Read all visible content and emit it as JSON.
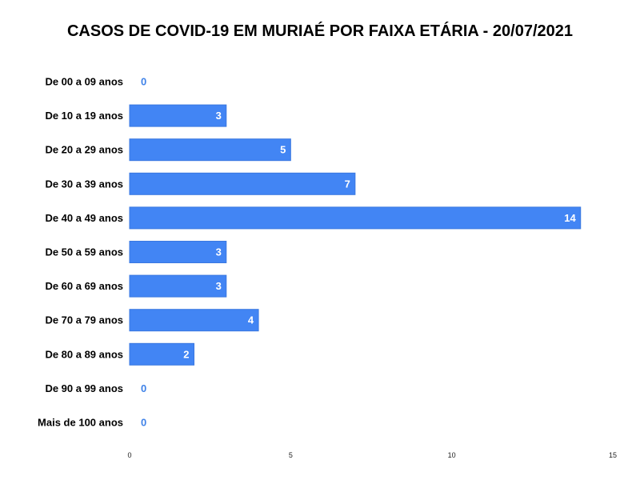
{
  "chart_data": {
    "type": "bar",
    "orientation": "horizontal",
    "title": "CASOS DE COVID-19 EM MURIAÉ POR FAIXA ETÁRIA - 20/07/2021",
    "xlabel": "",
    "ylabel": "",
    "categories": [
      "De 00 a 09 anos",
      "De 10 a 19 anos",
      "De 20 a 29 anos",
      "De 30 a 39 anos",
      "De 40 a 49 anos",
      "De 50 a 59 anos",
      "De 60 a 69 anos",
      "De 70 a 79 anos",
      "De 80 a 89 anos",
      "De 90 a 99 anos",
      "Mais de 100 anos"
    ],
    "values": [
      0,
      3,
      5,
      7,
      14,
      3,
      3,
      4,
      2,
      0,
      0
    ],
    "data_labels": true,
    "xlim": [
      0,
      15
    ],
    "x_ticks": [
      0,
      5,
      10,
      15
    ],
    "grid": false,
    "legend": "none",
    "bar_color": "#4285f4",
    "bar_edge_color": "#3a78e0",
    "label_color_outside": "#3f82e8"
  }
}
